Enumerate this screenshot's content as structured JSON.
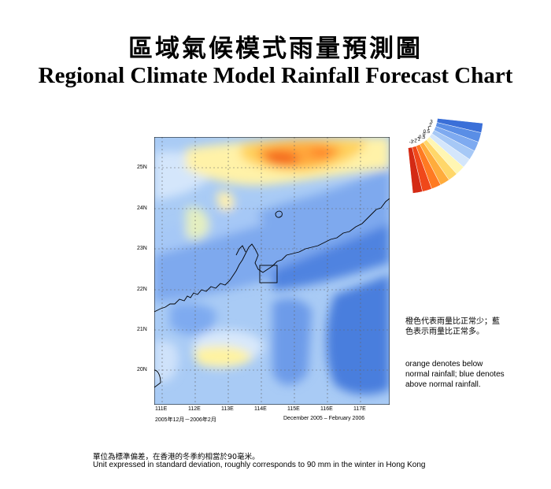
{
  "header": {
    "title_zh": "區域氣候模式雨量預測圖",
    "title_en": "Regional Climate Model Rainfall Forecast Chart"
  },
  "map": {
    "lat_labels": [
      "25N",
      "24N",
      "23N",
      "22N",
      "21N",
      "20N"
    ],
    "lon_labels": [
      "111E",
      "112E",
      "113E",
      "114E",
      "115E",
      "116E",
      "117E"
    ],
    "period_zh": "2005年12月－2006年2月",
    "period_en": "December 2005 – February 2006"
  },
  "legend": {
    "ticks": [
      "3",
      "2",
      "1",
      "0.5",
      "0",
      "-0.5",
      "-1",
      "-2",
      "-3"
    ],
    "colors": [
      "#3a6fd8",
      "#5a8ee6",
      "#7eaaf0",
      "#a6c8f6",
      "#d4e6fb",
      "#fff6b3",
      "#ffd76a",
      "#ffac3c",
      "#ff7a22",
      "#f0481a",
      "#d42a14"
    ]
  },
  "notes": {
    "zh": "橙色代表雨量比正常少；藍色表示雨量比正常多。",
    "en": "orange denotes below normal rainfall; blue denotes above normal rainfall."
  },
  "footer": {
    "unit_zh": "單位為標準偏差，在香港的冬季約相當於90毫米。",
    "unit_en": "Unit expressed in standard deviation, roughly corresponds to 90 mm in the winter in Hong Kong"
  }
}
